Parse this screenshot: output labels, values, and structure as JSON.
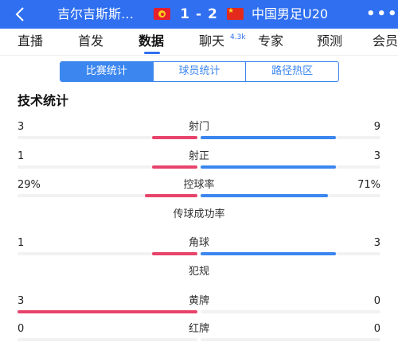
{
  "header": {
    "home_team": "吉尔吉斯斯…",
    "score": "1 - 2",
    "away_team": "中国男足U20",
    "more": "•••"
  },
  "tabs": [
    {
      "label": "直播"
    },
    {
      "label": "首发"
    },
    {
      "label": "数据"
    },
    {
      "label": "聊天"
    },
    {
      "label": "专家"
    },
    {
      "label": "预测"
    },
    {
      "label": "会员"
    }
  ],
  "chat_badge": "4.3k",
  "segments": [
    {
      "label": "比赛统计"
    },
    {
      "label": "球员统计"
    },
    {
      "label": "路径热区"
    }
  ],
  "section_title": "技术统计",
  "colors": {
    "home": "#e8446b",
    "away": "#3b86ef",
    "header": "#2f6ff0"
  },
  "stats": [
    {
      "label": "射门",
      "home": "3",
      "away": "9",
      "home_share": 0.25,
      "away_share": 0.75
    },
    {
      "label": "射正",
      "home": "1",
      "away": "3",
      "home_share": 0.25,
      "away_share": 0.75
    },
    {
      "label": "控球率",
      "home": "29%",
      "away": "71%",
      "home_share": 0.29,
      "away_share": 0.71
    },
    {
      "label": "传球成功率",
      "home": "",
      "away": "",
      "home_share": 0,
      "away_share": 0
    },
    {
      "label": "角球",
      "home": "1",
      "away": "3",
      "home_share": 0.25,
      "away_share": 0.75
    },
    {
      "label": "犯规",
      "home": "",
      "away": "",
      "home_share": 0,
      "away_share": 0
    },
    {
      "label": "黄牌",
      "home": "3",
      "away": "0",
      "home_share": 1.0,
      "away_share": 0
    },
    {
      "label": "红牌",
      "home": "0",
      "away": "0",
      "home_share": 0,
      "away_share": 0
    }
  ]
}
